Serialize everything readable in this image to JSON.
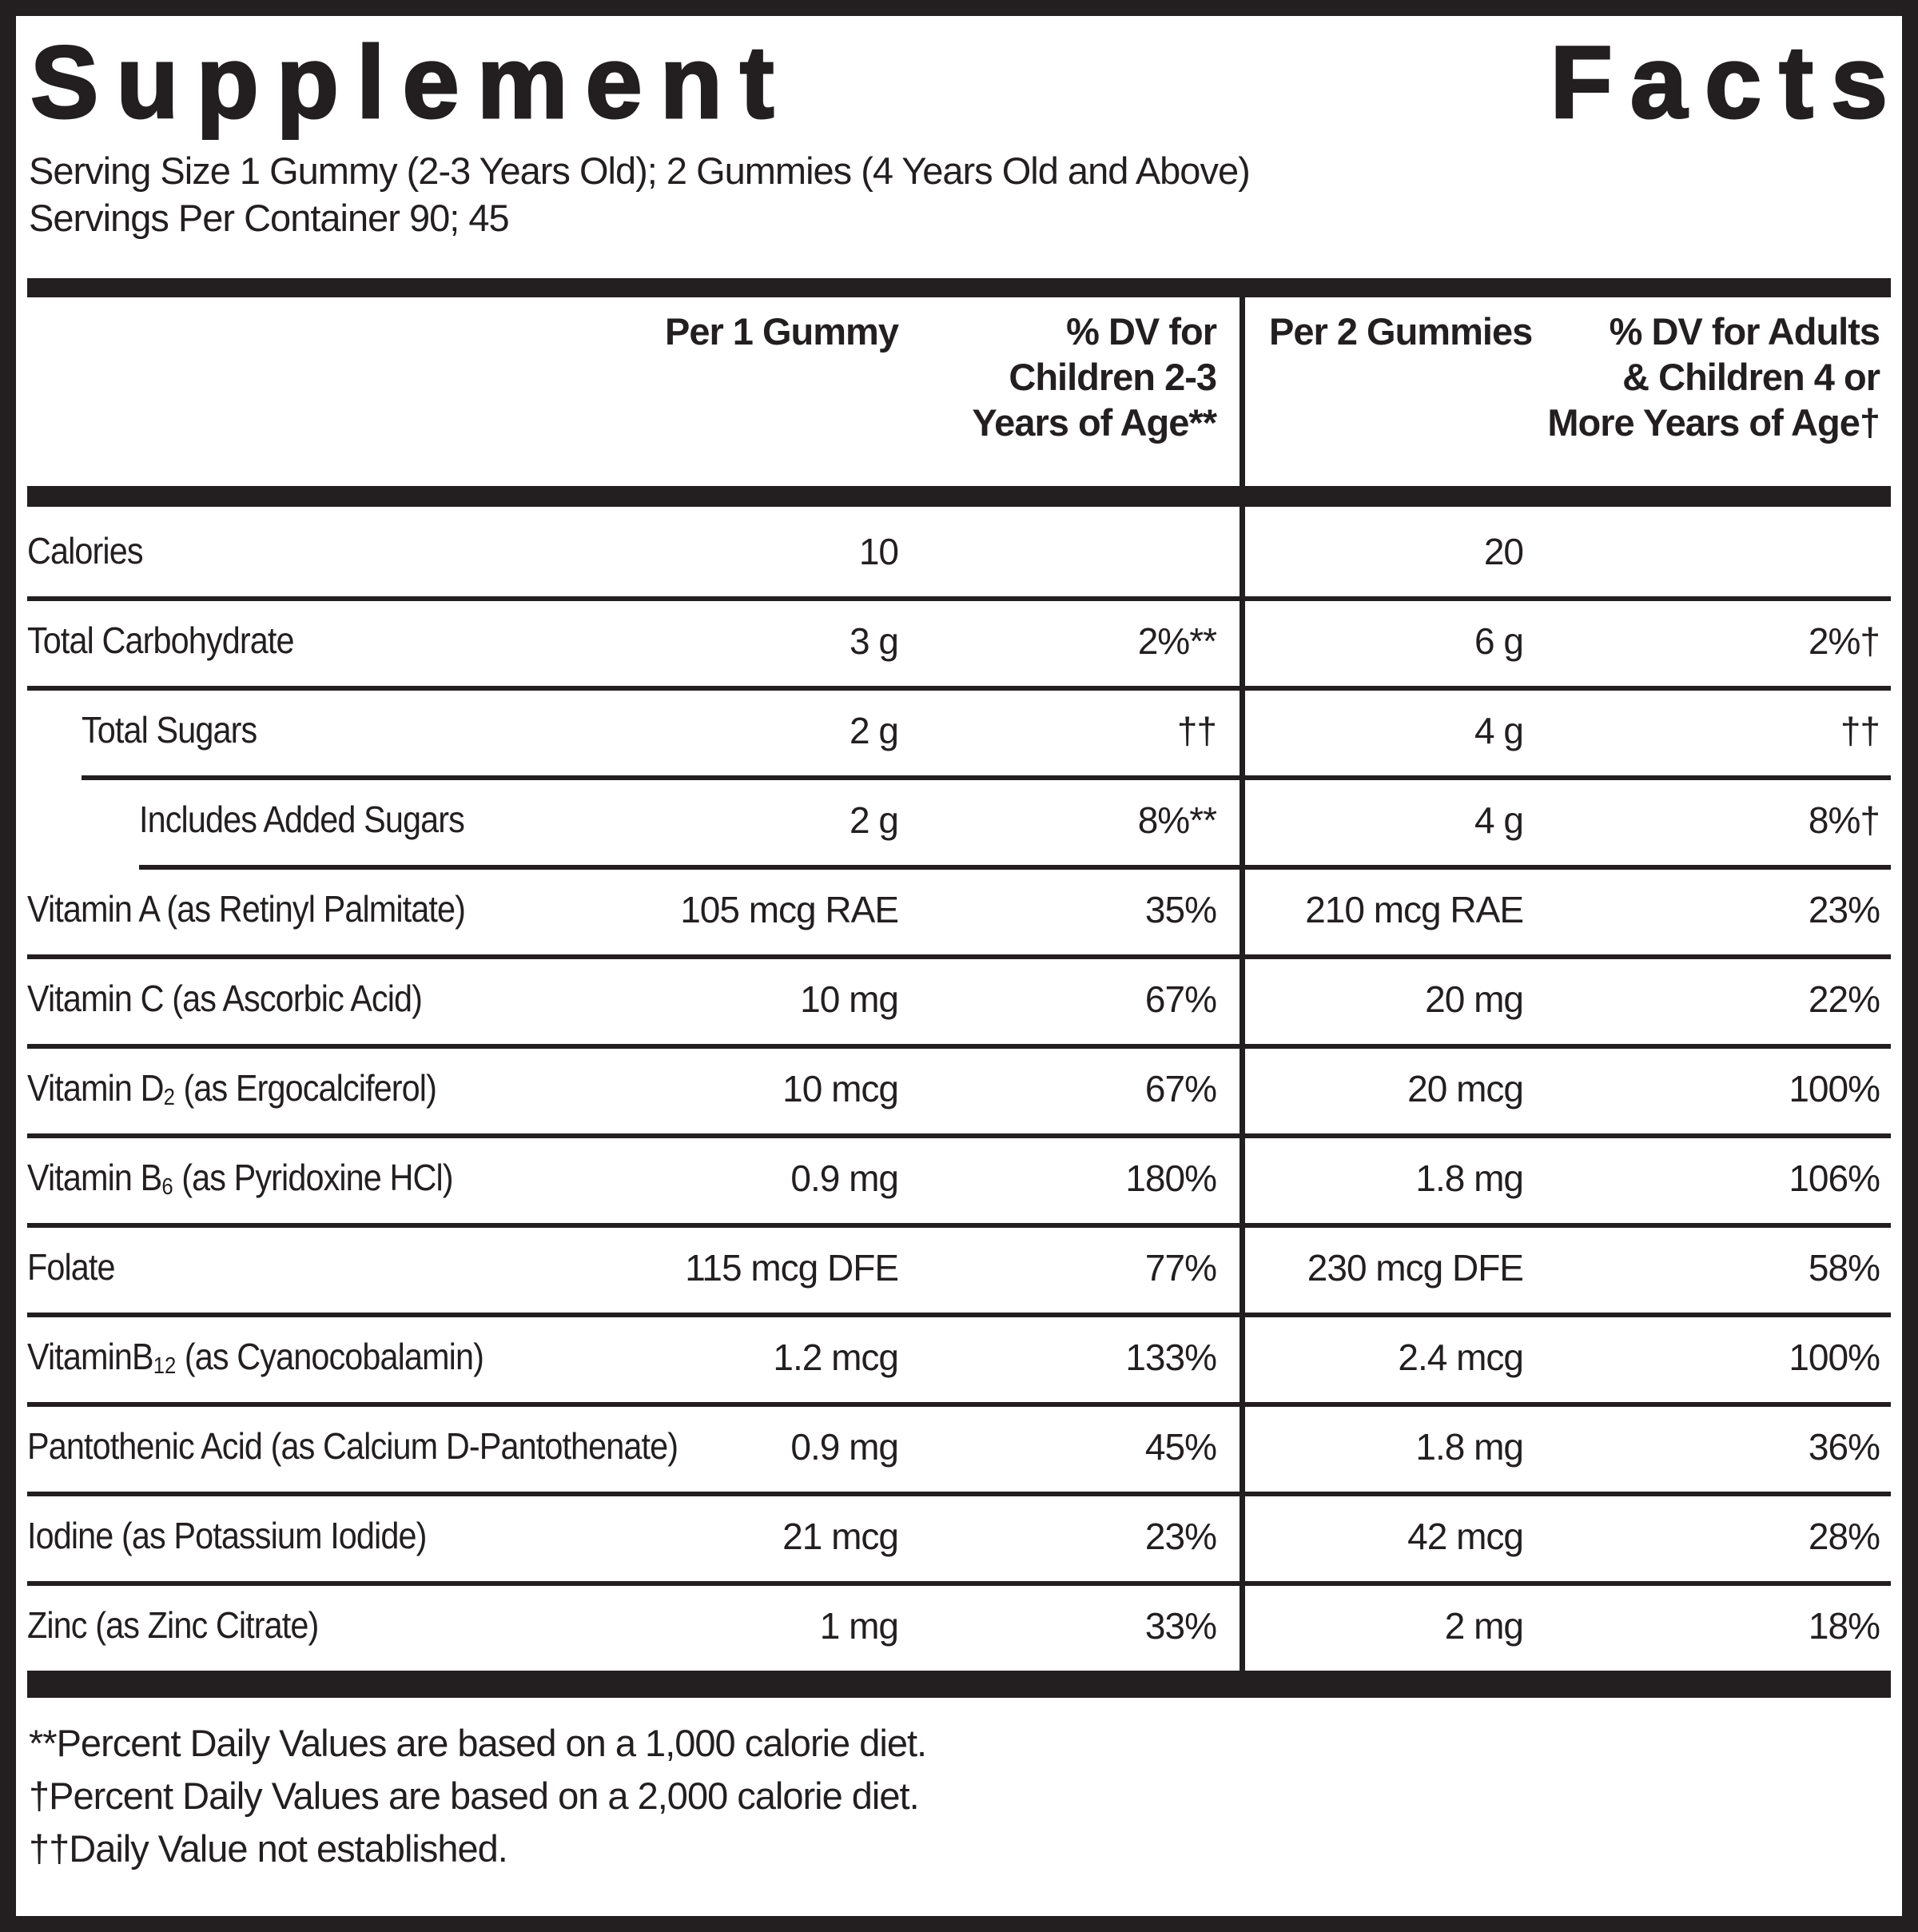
{
  "label": {
    "title_word_1": "Supplement",
    "title_word_2": "Facts",
    "serving_size_line": "Serving Size 1 Gummy (2-3 Years Old); 2 Gummies (4 Years Old and Above)",
    "servings_per_container_line": "Servings Per Container 90; 45"
  },
  "table": {
    "headers": {
      "per_1_gummy": "Per 1 Gummy",
      "dv_children_lines": [
        "% DV for",
        "Children 2-3",
        "Years of Age**"
      ],
      "per_2_gummies": "Per 2 Gummies",
      "dv_adults_lines": [
        "% DV for Adults",
        "& Children 4 or",
        "More Years of Age†"
      ]
    },
    "rows": [
      {
        "name_pre": "Calories",
        "amount_1": "10",
        "dv_children": "",
        "amount_2": "20",
        "dv_adults": ""
      },
      {
        "name_pre": "Total Carbohydrate",
        "amount_1": "3 g",
        "dv_children": "2%**",
        "amount_2": "6 g",
        "dv_adults": "2%†"
      },
      {
        "name_pre": "Total Sugars",
        "amount_1": "2 g",
        "dv_children": "††",
        "amount_2": "4 g",
        "dv_adults": "††"
      },
      {
        "name_pre": "Includes Added Sugars",
        "amount_1": "2 g",
        "dv_children": "8%**",
        "amount_2": "4 g",
        "dv_adults": "8%†"
      },
      {
        "name_pre": "Vitamin A (as Retinyl Palmitate)",
        "amount_1": "105 mcg RAE",
        "dv_children": "35%",
        "amount_2": "210 mcg RAE",
        "dv_adults": "23%"
      },
      {
        "name_pre": "Vitamin C (as Ascorbic Acid)",
        "amount_1": "10 mg",
        "dv_children": "67%",
        "amount_2": "20 mg",
        "dv_adults": "22%"
      },
      {
        "name_pre": "Vitamin D",
        "name_sub": "2",
        "name_post": " (as Ergocalciferol)",
        "amount_1": "10 mcg",
        "dv_children": "67%",
        "amount_2": "20 mcg",
        "dv_adults": "100%"
      },
      {
        "name_pre": "Vitamin B",
        "name_sub": "6",
        "name_post": " (as Pyridoxine HCl)",
        "amount_1": "0.9 mg",
        "dv_children": "180%",
        "amount_2": "1.8 mg",
        "dv_adults": "106%"
      },
      {
        "name_pre": "Folate",
        "amount_1": "115 mcg DFE",
        "dv_children": "77%",
        "amount_2": "230 mcg DFE",
        "dv_adults": "58%"
      },
      {
        "name_pre": "VitaminB",
        "name_sub": "12",
        "name_post": " (as Cyanocobalamin)",
        "amount_1": "1.2 mcg",
        "dv_children": "133%",
        "amount_2": "2.4 mcg",
        "dv_adults": "100%"
      },
      {
        "name_pre": "Pantothenic Acid (as Calcium D-Pantothenate)",
        "amount_1": "0.9 mg",
        "dv_children": "45%",
        "amount_2": "1.8 mg",
        "dv_adults": "36%"
      },
      {
        "name_pre": "Iodine (as Potassium Iodide)",
        "amount_1": "21 mcg",
        "dv_children": "23%",
        "amount_2": "42 mcg",
        "dv_adults": "28%"
      },
      {
        "name_pre": "Zinc (as Zinc Citrate)",
        "amount_1": "1 mg",
        "dv_children": "33%",
        "amount_2": "2 mg",
        "dv_adults": "18%"
      }
    ]
  },
  "footnotes": [
    "**Percent Daily Values are based on a 1,000 calorie diet.",
    "†Percent Daily Values are based on a 2,000 calorie diet.",
    "††Daily Value not established."
  ],
  "colors": {
    "ink": "#231f20",
    "background": "#ffffff"
  }
}
